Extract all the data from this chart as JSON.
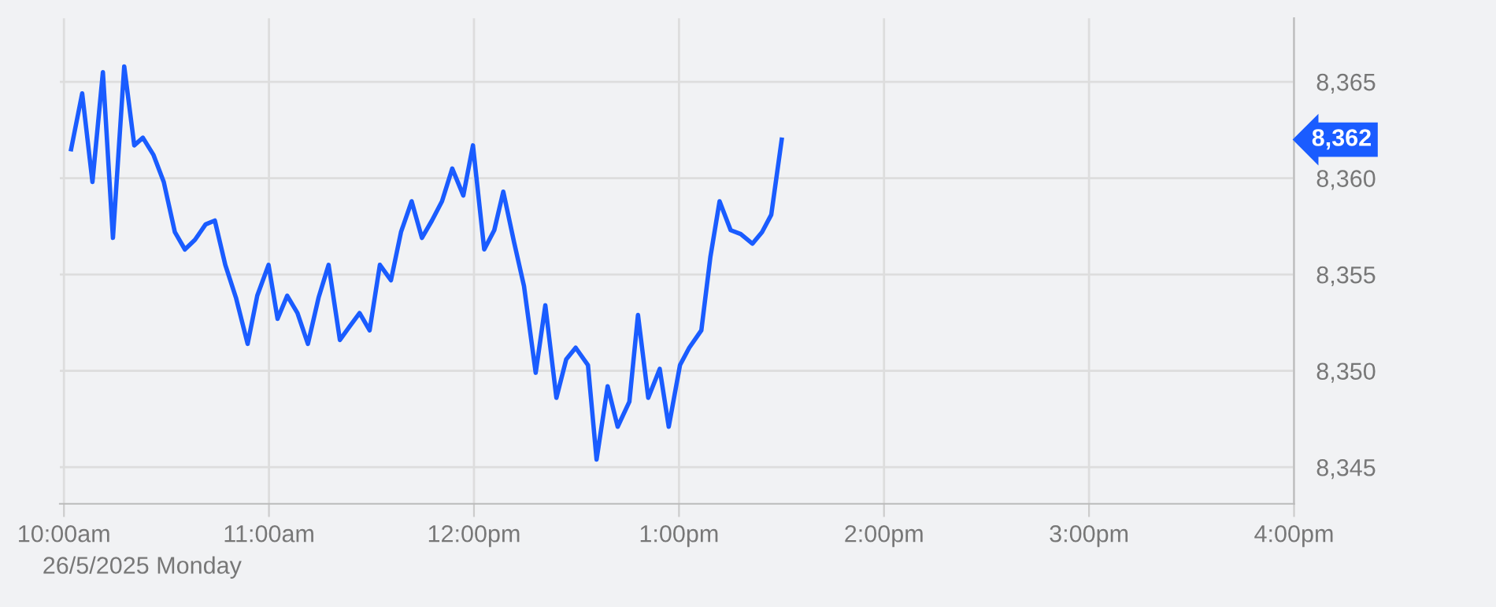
{
  "chart_data": {
    "type": "line",
    "x": [
      10.035,
      10.089,
      10.139,
      10.19,
      10.239,
      10.294,
      10.343,
      10.385,
      10.437,
      10.487,
      10.541,
      10.59,
      10.639,
      10.691,
      10.736,
      10.787,
      10.839,
      10.896,
      10.943,
      10.998,
      11.042,
      11.089,
      11.139,
      11.19,
      11.242,
      11.291,
      11.346,
      11.393,
      11.442,
      11.491,
      11.541,
      11.595,
      11.644,
      11.696,
      11.746,
      11.795,
      11.844,
      11.894,
      11.948,
      11.995,
      12.05,
      12.099,
      12.143,
      12.195,
      12.244,
      12.301,
      12.348,
      12.402,
      12.45,
      12.496,
      12.556,
      12.598,
      12.652,
      12.701,
      12.758,
      12.8,
      12.85,
      12.906,
      12.95,
      13.005,
      13.05,
      13.109,
      13.153,
      13.198,
      13.252,
      13.301,
      13.358,
      13.405,
      13.45,
      13.501
    ],
    "series": [
      {
        "color": "#1a5cff",
        "values": [
          8361.5,
          8364.4,
          8359.8,
          8365.5,
          8356.9,
          8365.8,
          8361.7,
          8362.1,
          8361.2,
          8359.8,
          8357.2,
          8356.3,
          8356.8,
          8357.6,
          8357.8,
          8355.5,
          8353.8,
          8351.4,
          8353.9,
          8355.5,
          8352.7,
          8353.9,
          8353.0,
          8351.4,
          8353.8,
          8355.5,
          8351.6,
          8352.3,
          8353.0,
          8352.1,
          8355.5,
          8354.7,
          8357.2,
          8358.8,
          8356.9,
          8357.8,
          8358.8,
          8360.5,
          8359.1,
          8361.7,
          8356.3,
          8357.3,
          8359.3,
          8356.7,
          8354.4,
          8349.9,
          8353.4,
          8348.6,
          8350.6,
          8351.2,
          8350.3,
          8345.4,
          8349.2,
          8347.1,
          8348.4,
          8352.9,
          8348.6,
          8350.1,
          8347.1,
          8350.3,
          8351.2,
          8352.1,
          8355.9,
          8358.8,
          8357.3,
          8357.1,
          8356.6,
          8357.2,
          8358.1,
          8362
        ]
      }
    ],
    "xlim": [
      9.98,
      16.0
    ],
    "xticks": [
      {
        "value": 10,
        "label": "10:00am"
      },
      {
        "value": 11,
        "label": "11:00am"
      },
      {
        "value": 12,
        "label": "12:00pm"
      },
      {
        "value": 13,
        "label": "1:00pm"
      },
      {
        "value": 14,
        "label": "2:00pm"
      },
      {
        "value": 15,
        "label": "3:00pm"
      },
      {
        "value": 16,
        "label": "4:00pm"
      }
    ],
    "ylim": [
      8343.1,
      8368.3
    ],
    "yticks": [
      {
        "value": 8345,
        "label": "8,345"
      },
      {
        "value": 8350,
        "label": "8,350"
      },
      {
        "value": 8355,
        "label": "8,355"
      },
      {
        "value": 8360,
        "label": "8,360"
      },
      {
        "value": 8365,
        "label": "8,365"
      }
    ],
    "annotations": [
      "8,362",
      "26/5/2025 Monday"
    ],
    "grid": true,
    "marker": "none",
    "line_style": "solid"
  }
}
